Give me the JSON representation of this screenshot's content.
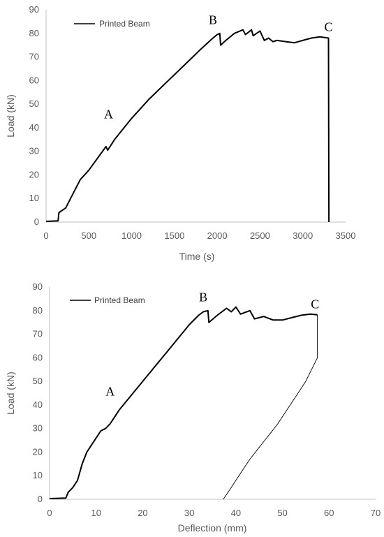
{
  "chart_data": [
    {
      "type": "line",
      "xlabel": "Time (s)",
      "ylabel": "Load (kN)",
      "xlim": [
        0,
        3500
      ],
      "ylim": [
        0,
        90
      ],
      "xticks": [
        0,
        500,
        1000,
        1500,
        2000,
        2500,
        3000,
        3500
      ],
      "yticks": [
        0,
        10,
        20,
        30,
        40,
        50,
        60,
        70,
        80,
        90
      ],
      "grid": false,
      "legend_position": "top-left",
      "series": [
        {
          "name": "Printed Beam",
          "color": "#000000",
          "points": [
            [
              0,
              0.3
            ],
            [
              140,
              0.5
            ],
            [
              150,
              4
            ],
            [
              230,
              6
            ],
            [
              300,
              11
            ],
            [
              400,
              18
            ],
            [
              500,
              22
            ],
            [
              600,
              27
            ],
            [
              700,
              32
            ],
            [
              720,
              30.5
            ],
            [
              800,
              35
            ],
            [
              1000,
              44
            ],
            [
              1200,
              52
            ],
            [
              1400,
              59
            ],
            [
              1600,
              66
            ],
            [
              1800,
              73
            ],
            [
              1950,
              78
            ],
            [
              2000,
              79.5
            ],
            [
              2030,
              80
            ],
            [
              2040,
              75
            ],
            [
              2100,
              77
            ],
            [
              2200,
              80
            ],
            [
              2300,
              81.5
            ],
            [
              2330,
              79.5
            ],
            [
              2400,
              81.5
            ],
            [
              2420,
              79
            ],
            [
              2500,
              81
            ],
            [
              2550,
              77
            ],
            [
              2600,
              78
            ],
            [
              2650,
              76.5
            ],
            [
              2700,
              77
            ],
            [
              2800,
              76.5
            ],
            [
              2900,
              76
            ],
            [
              3000,
              77
            ],
            [
              3100,
              78
            ],
            [
              3200,
              78.5
            ],
            [
              3300,
              78
            ],
            [
              3305,
              0
            ]
          ]
        }
      ],
      "annotations": [
        {
          "text": "A",
          "x": 730,
          "y": 44
        },
        {
          "text": "B",
          "x": 1950,
          "y": 84
        },
        {
          "text": "C",
          "x": 3300,
          "y": 81
        }
      ]
    },
    {
      "type": "line",
      "xlabel": "Deflection (mm)",
      "ylabel": "Load (kN)",
      "xlim": [
        0,
        70
      ],
      "ylim": [
        0,
        90
      ],
      "xticks": [
        0,
        10,
        20,
        30,
        40,
        50,
        60,
        70
      ],
      "yticks": [
        0,
        10,
        20,
        30,
        40,
        50,
        60,
        70,
        80,
        90
      ],
      "grid": false,
      "legend_position": "top-left",
      "series": [
        {
          "name": "Printed Beam",
          "color": "#000000",
          "points": [
            [
              0,
              0.3
            ],
            [
              3.5,
              0.5
            ],
            [
              4,
              3
            ],
            [
              5,
              5
            ],
            [
              6,
              8
            ],
            [
              7,
              15
            ],
            [
              8,
              20
            ],
            [
              9,
              23
            ],
            [
              10,
              26
            ],
            [
              11,
              29
            ],
            [
              12,
              30
            ],
            [
              13,
              32
            ],
            [
              15,
              38
            ],
            [
              20,
              50
            ],
            [
              25,
              62
            ],
            [
              30,
              74
            ],
            [
              32,
              78
            ],
            [
              33,
              79.5
            ],
            [
              34,
              80
            ],
            [
              34.2,
              75
            ],
            [
              36,
              78
            ],
            [
              38,
              81
            ],
            [
              39,
              79.5
            ],
            [
              40,
              81.5
            ],
            [
              41,
              78.5
            ],
            [
              43,
              80
            ],
            [
              44,
              76.5
            ],
            [
              46,
              77.5
            ],
            [
              48,
              76
            ],
            [
              50,
              76
            ],
            [
              52,
              77
            ],
            [
              54,
              78
            ],
            [
              56,
              78.5
            ],
            [
              57.5,
              78.2
            ]
          ]
        },
        {
          "name": "Printed Beam",
          "color": "#000000",
          "style": "thin",
          "points": [
            [
              57.5,
              78.2
            ],
            [
              57.5,
              60
            ],
            [
              57,
              58
            ],
            [
              55,
              50
            ],
            [
              53,
              44
            ],
            [
              51,
              38
            ],
            [
              49,
              32
            ],
            [
              47,
              27
            ],
            [
              45,
              22
            ],
            [
              43,
              17
            ],
            [
              41,
              11
            ],
            [
              39,
              5
            ],
            [
              37.3,
              0
            ]
          ]
        }
      ],
      "annotations": [
        {
          "text": "A",
          "x": 13,
          "y": 44
        },
        {
          "text": "B",
          "x": 33,
          "y": 84
        },
        {
          "text": "C",
          "x": 57,
          "y": 81
        }
      ]
    }
  ]
}
